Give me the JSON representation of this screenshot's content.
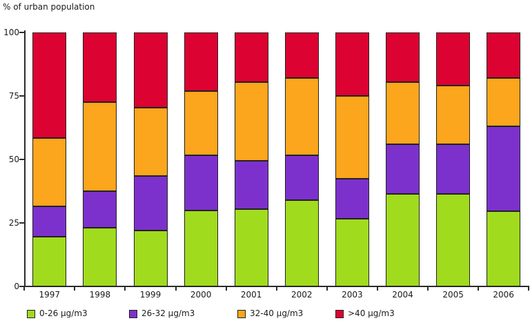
{
  "header": {
    "title": "% of urban population"
  },
  "chart_data": {
    "type": "bar",
    "stacked": true,
    "title": "% of urban population",
    "xlabel": "",
    "ylabel": "% of urban population",
    "categories": [
      "1997",
      "1998",
      "1999",
      "2000",
      "2001",
      "2002",
      "2003",
      "2004",
      "2005",
      "2006"
    ],
    "series": [
      {
        "name": "0-26 µg/m3",
        "color": "#A1DB1E",
        "values": [
          19.5,
          23,
          22,
          30,
          30.5,
          34,
          26.5,
          36.5,
          36.5,
          29.5
        ]
      },
      {
        "name": "26-32 µg/m3",
        "color": "#7D31CC",
        "values": [
          12,
          14.5,
          21.5,
          21.5,
          19,
          17.5,
          16,
          19.5,
          19.5,
          33.5
        ]
      },
      {
        "name": "32-40 µg/m3",
        "color": "#FBA61C",
        "values": [
          27,
          35,
          27,
          25.5,
          31,
          30.5,
          32.5,
          24.5,
          23,
          19
        ]
      },
      {
        "name": ">40 µg/m3",
        "color": "#DC0231",
        "values": [
          41.5,
          27.5,
          29.5,
          23,
          19.5,
          18,
          25,
          19.5,
          21,
          18
        ]
      }
    ],
    "ylim": [
      0,
      100
    ],
    "yticks": [
      0,
      25,
      50,
      75,
      100
    ],
    "grid": false,
    "legend_position": "bottom",
    "colors": {
      "axis": "#2b2b2b",
      "segment_outline": "#222222",
      "background": "#ffffff",
      "text": "#1a1a1a"
    }
  }
}
